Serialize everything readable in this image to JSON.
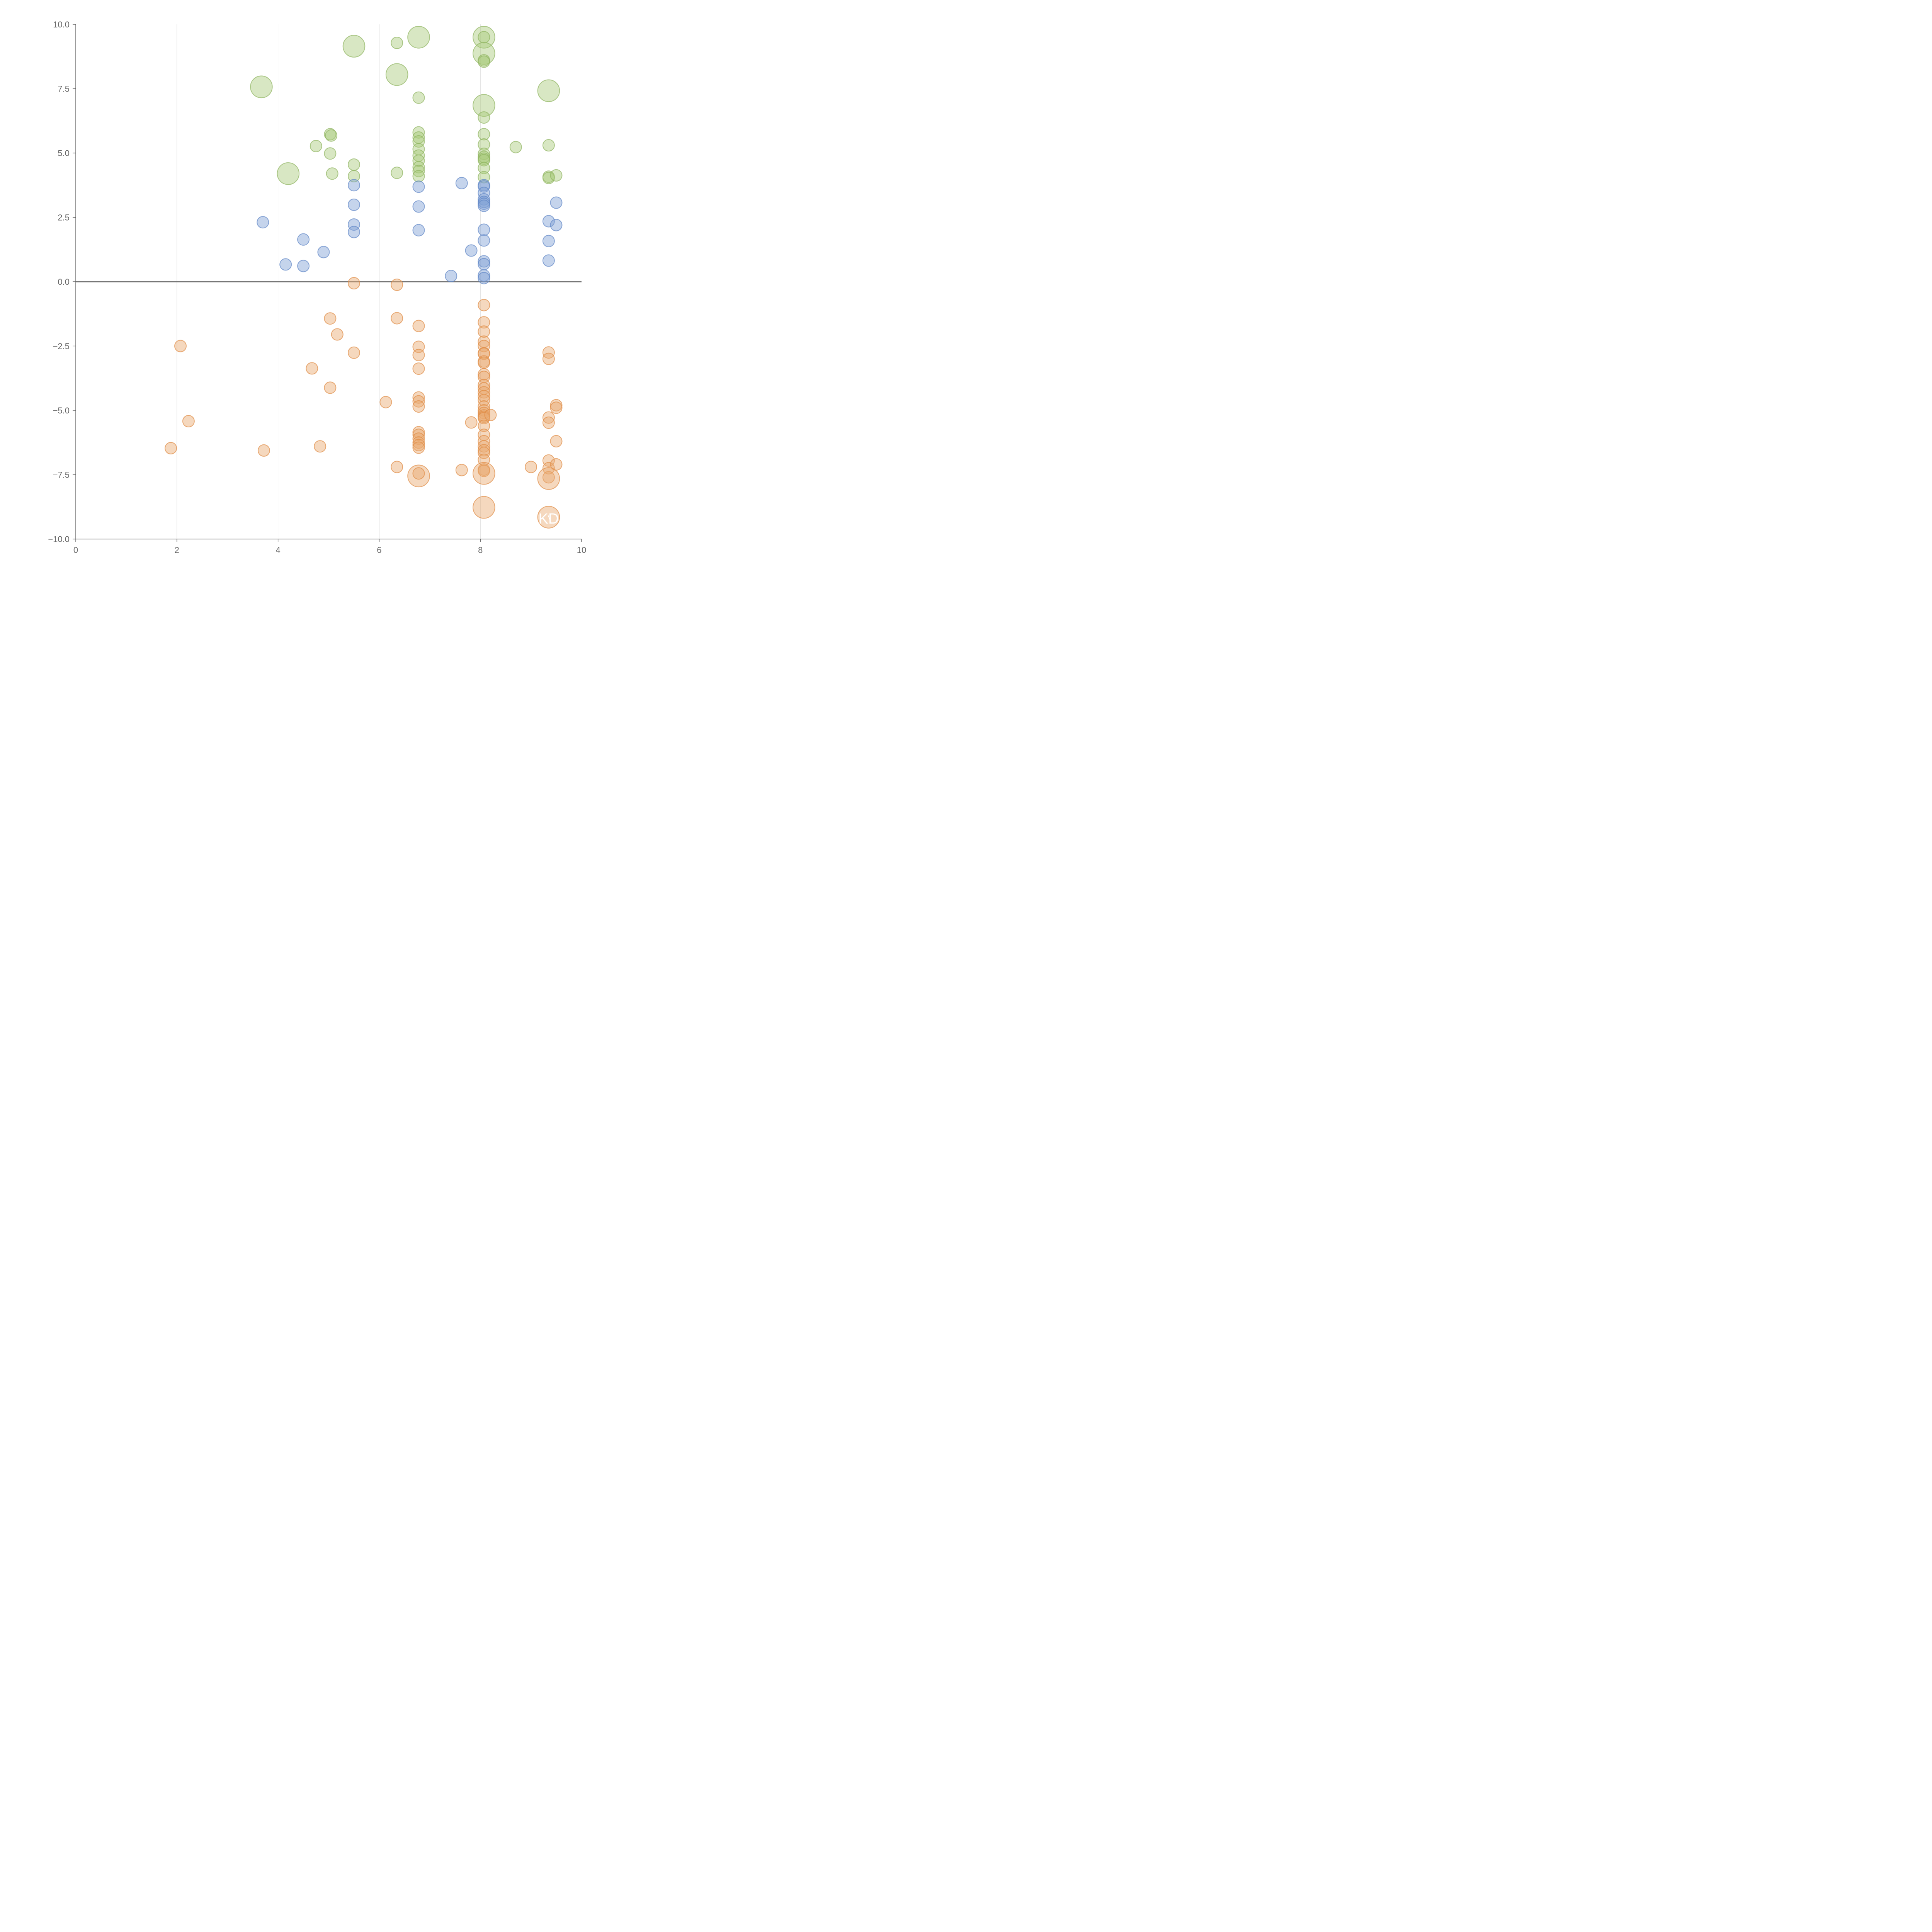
{
  "chart_data": {
    "type": "scatter",
    "title": "",
    "xlabel": "",
    "ylabel": "",
    "xlim": [
      0,
      10
    ],
    "ylim": [
      -10,
      10
    ],
    "x_ticks": [
      0,
      2,
      4,
      6,
      8,
      10
    ],
    "x_tick_labels": [
      "0",
      "2",
      "4",
      "6",
      "8",
      "10"
    ],
    "y_ticks": [
      10,
      7.5,
      5,
      2.5,
      0,
      -2.5,
      -5,
      -7.5,
      -10
    ],
    "y_tick_labels": [
      "10.0",
      "7.5",
      "5.0",
      "2.5",
      "0.0",
      "−2.5",
      "−5.0",
      "−7.5",
      "−10.0"
    ],
    "grid": "vertical",
    "zero_line": true,
    "colors": {
      "green_fill": "#a9c97a",
      "green_edge": "#8fb460",
      "blue_fill": "#7fa0d4",
      "blue_edge": "#5f86c6",
      "orange_fill": "#e8a86f",
      "orange_edge": "#df8c45",
      "axis": "#555555",
      "grid": "#d9d9d9"
    },
    "annotations": [
      "KD"
    ],
    "series": [
      {
        "name": "green",
        "color_key": "green",
        "points": [
          [
            3.67,
            7.57,
            2.6
          ],
          [
            4.2,
            4.2,
            2.6
          ],
          [
            4.75,
            5.27,
            1.0
          ],
          [
            5.03,
            5.73,
            1.0
          ],
          [
            5.05,
            5.68,
            1.0
          ],
          [
            5.03,
            4.98,
            1.0
          ],
          [
            5.07,
            4.2,
            1.0
          ],
          [
            5.5,
            9.15,
            2.6
          ],
          [
            5.5,
            4.55,
            1.0
          ],
          [
            5.5,
            4.1,
            1.0
          ],
          [
            6.35,
            9.28,
            1.0
          ],
          [
            6.35,
            8.05,
            2.6
          ],
          [
            6.35,
            4.23,
            1.0
          ],
          [
            6.78,
            9.5,
            2.6
          ],
          [
            6.78,
            7.15,
            1.0
          ],
          [
            6.78,
            5.8,
            1.0
          ],
          [
            6.78,
            5.6,
            1.0
          ],
          [
            6.78,
            5.45,
            1.0
          ],
          [
            6.78,
            5.15,
            1.0
          ],
          [
            6.78,
            4.9,
            1.0
          ],
          [
            6.78,
            4.7,
            1.0
          ],
          [
            6.78,
            4.45,
            1.0
          ],
          [
            6.78,
            4.3,
            1.0
          ],
          [
            6.78,
            4.1,
            1.0
          ],
          [
            8.07,
            9.5,
            2.6
          ],
          [
            8.07,
            9.5,
            1.0
          ],
          [
            8.07,
            8.87,
            2.6
          ],
          [
            8.07,
            8.6,
            1.0
          ],
          [
            8.07,
            8.55,
            1.0
          ],
          [
            8.07,
            6.85,
            2.6
          ],
          [
            8.07,
            6.38,
            1.0
          ],
          [
            8.07,
            5.73,
            1.0
          ],
          [
            8.07,
            5.33,
            1.0
          ],
          [
            8.07,
            4.97,
            1.0
          ],
          [
            8.07,
            4.85,
            1.0
          ],
          [
            8.07,
            4.78,
            1.0
          ],
          [
            8.07,
            4.72,
            1.0
          ],
          [
            8.07,
            4.42,
            1.0
          ],
          [
            8.07,
            4.06,
            1.0
          ],
          [
            8.7,
            5.23,
            1.0
          ],
          [
            9.35,
            7.42,
            2.6
          ],
          [
            9.35,
            5.3,
            1.0
          ],
          [
            9.35,
            4.08,
            1.0
          ],
          [
            9.35,
            4.03,
            1.0
          ],
          [
            9.5,
            4.13,
            1.0
          ]
        ]
      },
      {
        "name": "blue",
        "color_key": "blue",
        "points": [
          [
            3.7,
            2.31,
            1.0
          ],
          [
            4.15,
            0.67,
            1.0
          ],
          [
            4.5,
            1.64,
            1.0
          ],
          [
            4.5,
            0.61,
            1.0
          ],
          [
            4.9,
            1.15,
            1.0
          ],
          [
            5.5,
            3.75,
            1.0
          ],
          [
            5.5,
            2.99,
            1.0
          ],
          [
            5.5,
            2.22,
            1.0
          ],
          [
            5.5,
            1.93,
            1.0
          ],
          [
            6.78,
            3.69,
            1.0
          ],
          [
            6.78,
            2.92,
            1.0
          ],
          [
            6.78,
            2.0,
            1.0
          ],
          [
            7.42,
            0.22,
            1.0
          ],
          [
            7.63,
            3.83,
            1.0
          ],
          [
            7.82,
            1.21,
            1.0
          ],
          [
            8.07,
            3.75,
            1.0
          ],
          [
            8.07,
            3.7,
            1.0
          ],
          [
            8.07,
            3.45,
            1.0
          ],
          [
            8.07,
            3.2,
            1.0
          ],
          [
            8.07,
            3.1,
            1.0
          ],
          [
            8.07,
            3.03,
            1.0
          ],
          [
            8.07,
            2.95,
            1.0
          ],
          [
            8.07,
            2.02,
            1.0
          ],
          [
            8.07,
            1.6,
            1.0
          ],
          [
            8.07,
            0.79,
            1.0
          ],
          [
            8.07,
            0.68,
            1.0
          ],
          [
            8.07,
            0.24,
            1.0
          ],
          [
            8.07,
            0.14,
            1.0
          ],
          [
            9.35,
            2.35,
            1.0
          ],
          [
            9.35,
            1.58,
            1.0
          ],
          [
            9.35,
            0.82,
            1.0
          ],
          [
            9.5,
            3.07,
            1.0
          ],
          [
            9.5,
            2.2,
            1.0
          ]
        ]
      },
      {
        "name": "orange",
        "color_key": "orange",
        "points": [
          [
            1.88,
            -6.47,
            1.0
          ],
          [
            2.07,
            -2.5,
            1.0
          ],
          [
            2.23,
            -5.42,
            1.0
          ],
          [
            3.72,
            -6.56,
            1.0
          ],
          [
            4.67,
            -3.37,
            1.0
          ],
          [
            4.83,
            -6.4,
            1.0
          ],
          [
            5.03,
            -1.43,
            1.0
          ],
          [
            5.03,
            -4.12,
            1.0
          ],
          [
            5.17,
            -2.05,
            1.0
          ],
          [
            5.5,
            -0.06,
            1.0
          ],
          [
            5.5,
            -2.76,
            1.0
          ],
          [
            6.13,
            -4.68,
            1.0
          ],
          [
            6.35,
            -0.12,
            1.0
          ],
          [
            6.35,
            -1.42,
            1.0
          ],
          [
            6.35,
            -7.2,
            1.0
          ],
          [
            6.78,
            -1.72,
            1.0
          ],
          [
            6.78,
            -2.53,
            1.0
          ],
          [
            6.78,
            -2.85,
            1.0
          ],
          [
            6.78,
            -3.38,
            1.0
          ],
          [
            6.78,
            -4.5,
            1.0
          ],
          [
            6.78,
            -4.65,
            1.0
          ],
          [
            6.78,
            -4.85,
            1.0
          ],
          [
            6.78,
            -5.85,
            1.0
          ],
          [
            6.78,
            -5.95,
            1.0
          ],
          [
            6.78,
            -6.1,
            1.0
          ],
          [
            6.78,
            -6.25,
            1.0
          ],
          [
            6.78,
            -6.35,
            1.0
          ],
          [
            6.78,
            -6.45,
            1.0
          ],
          [
            6.78,
            -7.55,
            2.6
          ],
          [
            6.78,
            -7.45,
            1.0
          ],
          [
            7.63,
            -7.32,
            1.0
          ],
          [
            7.82,
            -5.47,
            1.0
          ],
          [
            8.07,
            -0.91,
            1.0
          ],
          [
            8.07,
            -1.58,
            1.0
          ],
          [
            8.07,
            -1.94,
            1.0
          ],
          [
            8.07,
            -2.33,
            1.0
          ],
          [
            8.07,
            -2.5,
            1.0
          ],
          [
            8.07,
            -2.78,
            1.0
          ],
          [
            8.07,
            -2.8,
            1.0
          ],
          [
            8.07,
            -3.1,
            1.0
          ],
          [
            8.07,
            -3.15,
            1.0
          ],
          [
            8.07,
            -3.6,
            1.0
          ],
          [
            8.07,
            -3.7,
            1.0
          ],
          [
            8.07,
            -4.02,
            1.0
          ],
          [
            8.07,
            -4.15,
            1.0
          ],
          [
            8.07,
            -4.3,
            1.0
          ],
          [
            8.07,
            -4.45,
            1.0
          ],
          [
            8.07,
            -4.6,
            1.0
          ],
          [
            8.07,
            -4.85,
            1.0
          ],
          [
            8.07,
            -5.0,
            1.0
          ],
          [
            8.07,
            -5.1,
            1.0
          ],
          [
            8.07,
            -5.2,
            1.0
          ],
          [
            8.07,
            -5.25,
            1.0
          ],
          [
            8.07,
            -5.3,
            1.0
          ],
          [
            8.2,
            -5.18,
            1.0
          ],
          [
            8.07,
            -5.6,
            1.0
          ],
          [
            8.07,
            -5.95,
            1.0
          ],
          [
            8.07,
            -6.2,
            1.0
          ],
          [
            8.07,
            -6.4,
            1.0
          ],
          [
            8.07,
            -6.55,
            1.0
          ],
          [
            8.07,
            -6.65,
            1.0
          ],
          [
            8.07,
            -6.92,
            1.0
          ],
          [
            8.07,
            -7.3,
            1.0
          ],
          [
            8.07,
            -7.35,
            1.0
          ],
          [
            8.07,
            -7.45,
            2.6
          ],
          [
            8.07,
            -8.77,
            2.6
          ],
          [
            9.0,
            -7.2,
            1.0
          ],
          [
            9.35,
            -2.75,
            1.0
          ],
          [
            9.35,
            -3.0,
            1.0
          ],
          [
            9.35,
            -5.28,
            1.0
          ],
          [
            9.35,
            -5.48,
            1.0
          ],
          [
            9.35,
            -6.95,
            1.0
          ],
          [
            9.35,
            -7.25,
            1.0
          ],
          [
            9.35,
            -7.6,
            1.0
          ],
          [
            9.35,
            -7.65,
            2.6
          ],
          [
            9.35,
            -9.15,
            2.6
          ],
          [
            9.5,
            -4.8,
            1.0
          ],
          [
            9.5,
            -4.9,
            1.0
          ],
          [
            9.5,
            -6.2,
            1.0
          ],
          [
            9.5,
            -7.1,
            1.0
          ]
        ]
      }
    ]
  }
}
